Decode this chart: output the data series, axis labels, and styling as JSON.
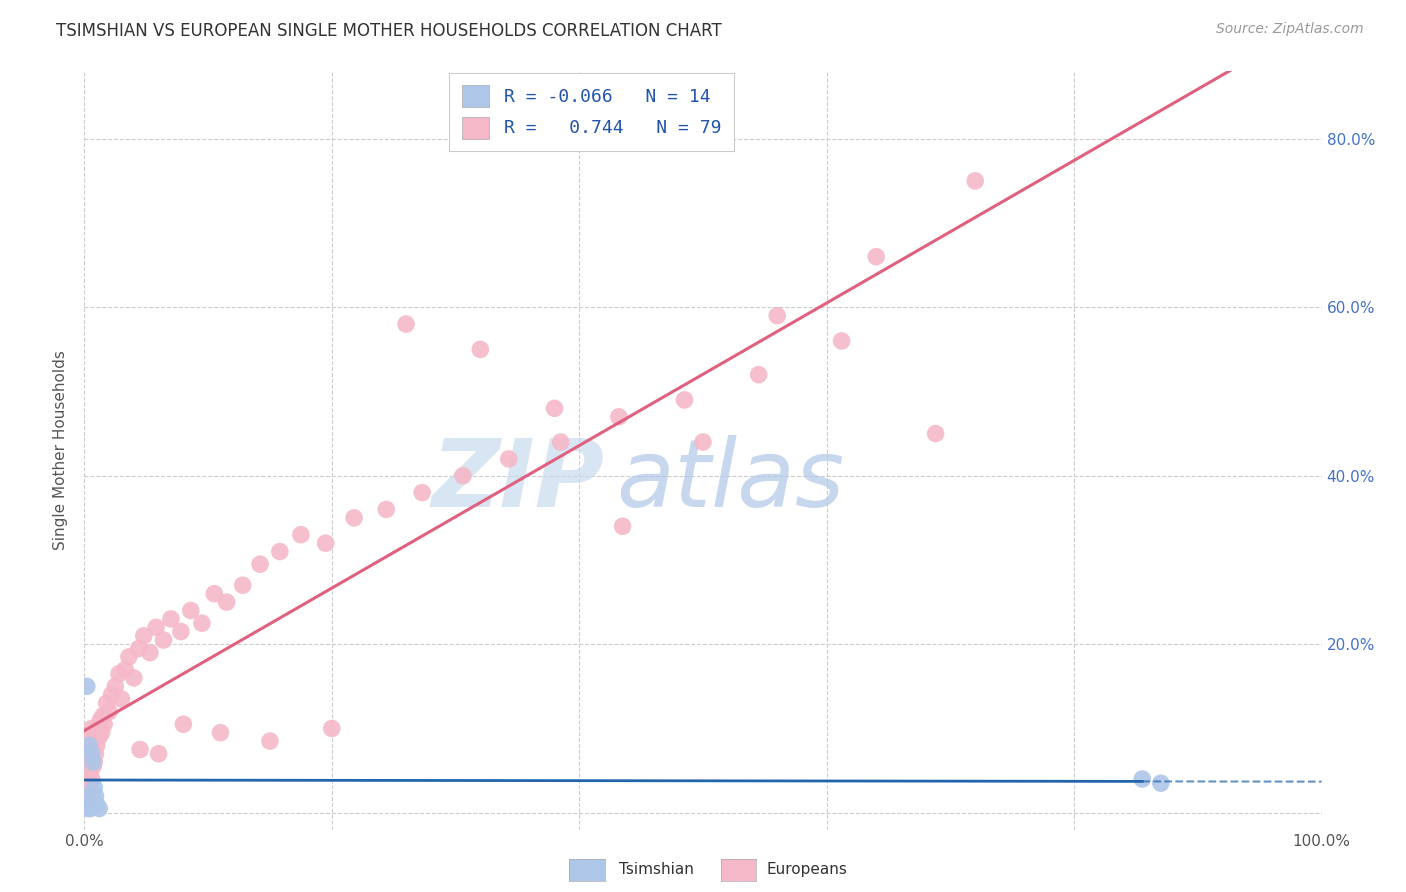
{
  "title": "TSIMSHIAN VS EUROPEAN SINGLE MOTHER HOUSEHOLDS CORRELATION CHART",
  "source": "Source: ZipAtlas.com",
  "ylabel": "Single Mother Households",
  "legend_tsimshian": "Tsimshian",
  "legend_europeans": "Europeans",
  "r_tsimshian": -0.066,
  "n_tsimshian": 14,
  "r_europeans": 0.744,
  "n_europeans": 79,
  "tsimshian_color": "#aec6e8",
  "european_color": "#f5b8c8",
  "tsimshian_line_color": "#2166ac",
  "european_line_color": "#e06080",
  "grid_color": "#cccccc",
  "background_color": "#ffffff",
  "watermark_zip_color": "#c5d8ee",
  "watermark_atlas_color": "#b8cfe8",
  "right_axis_color": "#4472c4",
  "tsimshian_x": [
    0.001,
    0.002,
    0.002,
    0.003,
    0.004,
    0.005,
    0.006,
    0.007,
    0.008,
    0.009,
    0.01,
    0.012,
    0.855,
    0.87
  ],
  "tsimshian_y": [
    0.01,
    0.02,
    0.15,
    0.005,
    0.08,
    0.005,
    0.07,
    0.06,
    0.03,
    0.02,
    0.01,
    0.005,
    0.04,
    0.035
  ],
  "european_x": [
    0.001,
    0.001,
    0.001,
    0.001,
    0.002,
    0.002,
    0.002,
    0.002,
    0.003,
    0.003,
    0.003,
    0.004,
    0.004,
    0.005,
    0.005,
    0.006,
    0.006,
    0.007,
    0.007,
    0.008,
    0.008,
    0.009,
    0.01,
    0.011,
    0.012,
    0.013,
    0.014,
    0.015,
    0.016,
    0.018,
    0.02,
    0.022,
    0.025,
    0.028,
    0.03,
    0.033,
    0.036,
    0.04,
    0.044,
    0.048,
    0.053,
    0.058,
    0.064,
    0.07,
    0.078,
    0.086,
    0.095,
    0.105,
    0.115,
    0.128,
    0.142,
    0.158,
    0.175,
    0.195,
    0.218,
    0.244,
    0.273,
    0.306,
    0.343,
    0.385,
    0.432,
    0.485,
    0.545,
    0.612,
    0.688,
    0.435,
    0.38,
    0.32,
    0.26,
    0.2,
    0.15,
    0.11,
    0.08,
    0.06,
    0.045,
    0.5,
    0.56,
    0.64,
    0.72
  ],
  "european_y": [
    0.04,
    0.03,
    0.055,
    0.015,
    0.06,
    0.02,
    0.07,
    0.045,
    0.08,
    0.025,
    0.065,
    0.09,
    0.035,
    0.075,
    0.05,
    0.1,
    0.04,
    0.085,
    0.055,
    0.095,
    0.06,
    0.07,
    0.08,
    0.1,
    0.09,
    0.11,
    0.095,
    0.115,
    0.105,
    0.13,
    0.12,
    0.14,
    0.15,
    0.165,
    0.135,
    0.17,
    0.185,
    0.16,
    0.195,
    0.21,
    0.19,
    0.22,
    0.205,
    0.23,
    0.215,
    0.24,
    0.225,
    0.26,
    0.25,
    0.27,
    0.295,
    0.31,
    0.33,
    0.32,
    0.35,
    0.36,
    0.38,
    0.4,
    0.42,
    0.44,
    0.47,
    0.49,
    0.52,
    0.56,
    0.45,
    0.34,
    0.48,
    0.55,
    0.58,
    0.1,
    0.085,
    0.095,
    0.105,
    0.07,
    0.075,
    0.44,
    0.59,
    0.66,
    0.75
  ],
  "xlim": [
    0.0,
    1.0
  ],
  "ylim": [
    -0.02,
    0.88
  ],
  "ytick_positions": [
    0.0,
    0.2,
    0.4,
    0.6,
    0.8
  ],
  "xtick_positions": [
    0.0,
    0.2,
    0.4,
    0.6,
    0.8,
    1.0
  ],
  "right_ytick_labels": [
    "20.0%",
    "40.0%",
    "60.0%",
    "80.0%"
  ],
  "right_ytick_positions": [
    0.2,
    0.4,
    0.6,
    0.8
  ]
}
